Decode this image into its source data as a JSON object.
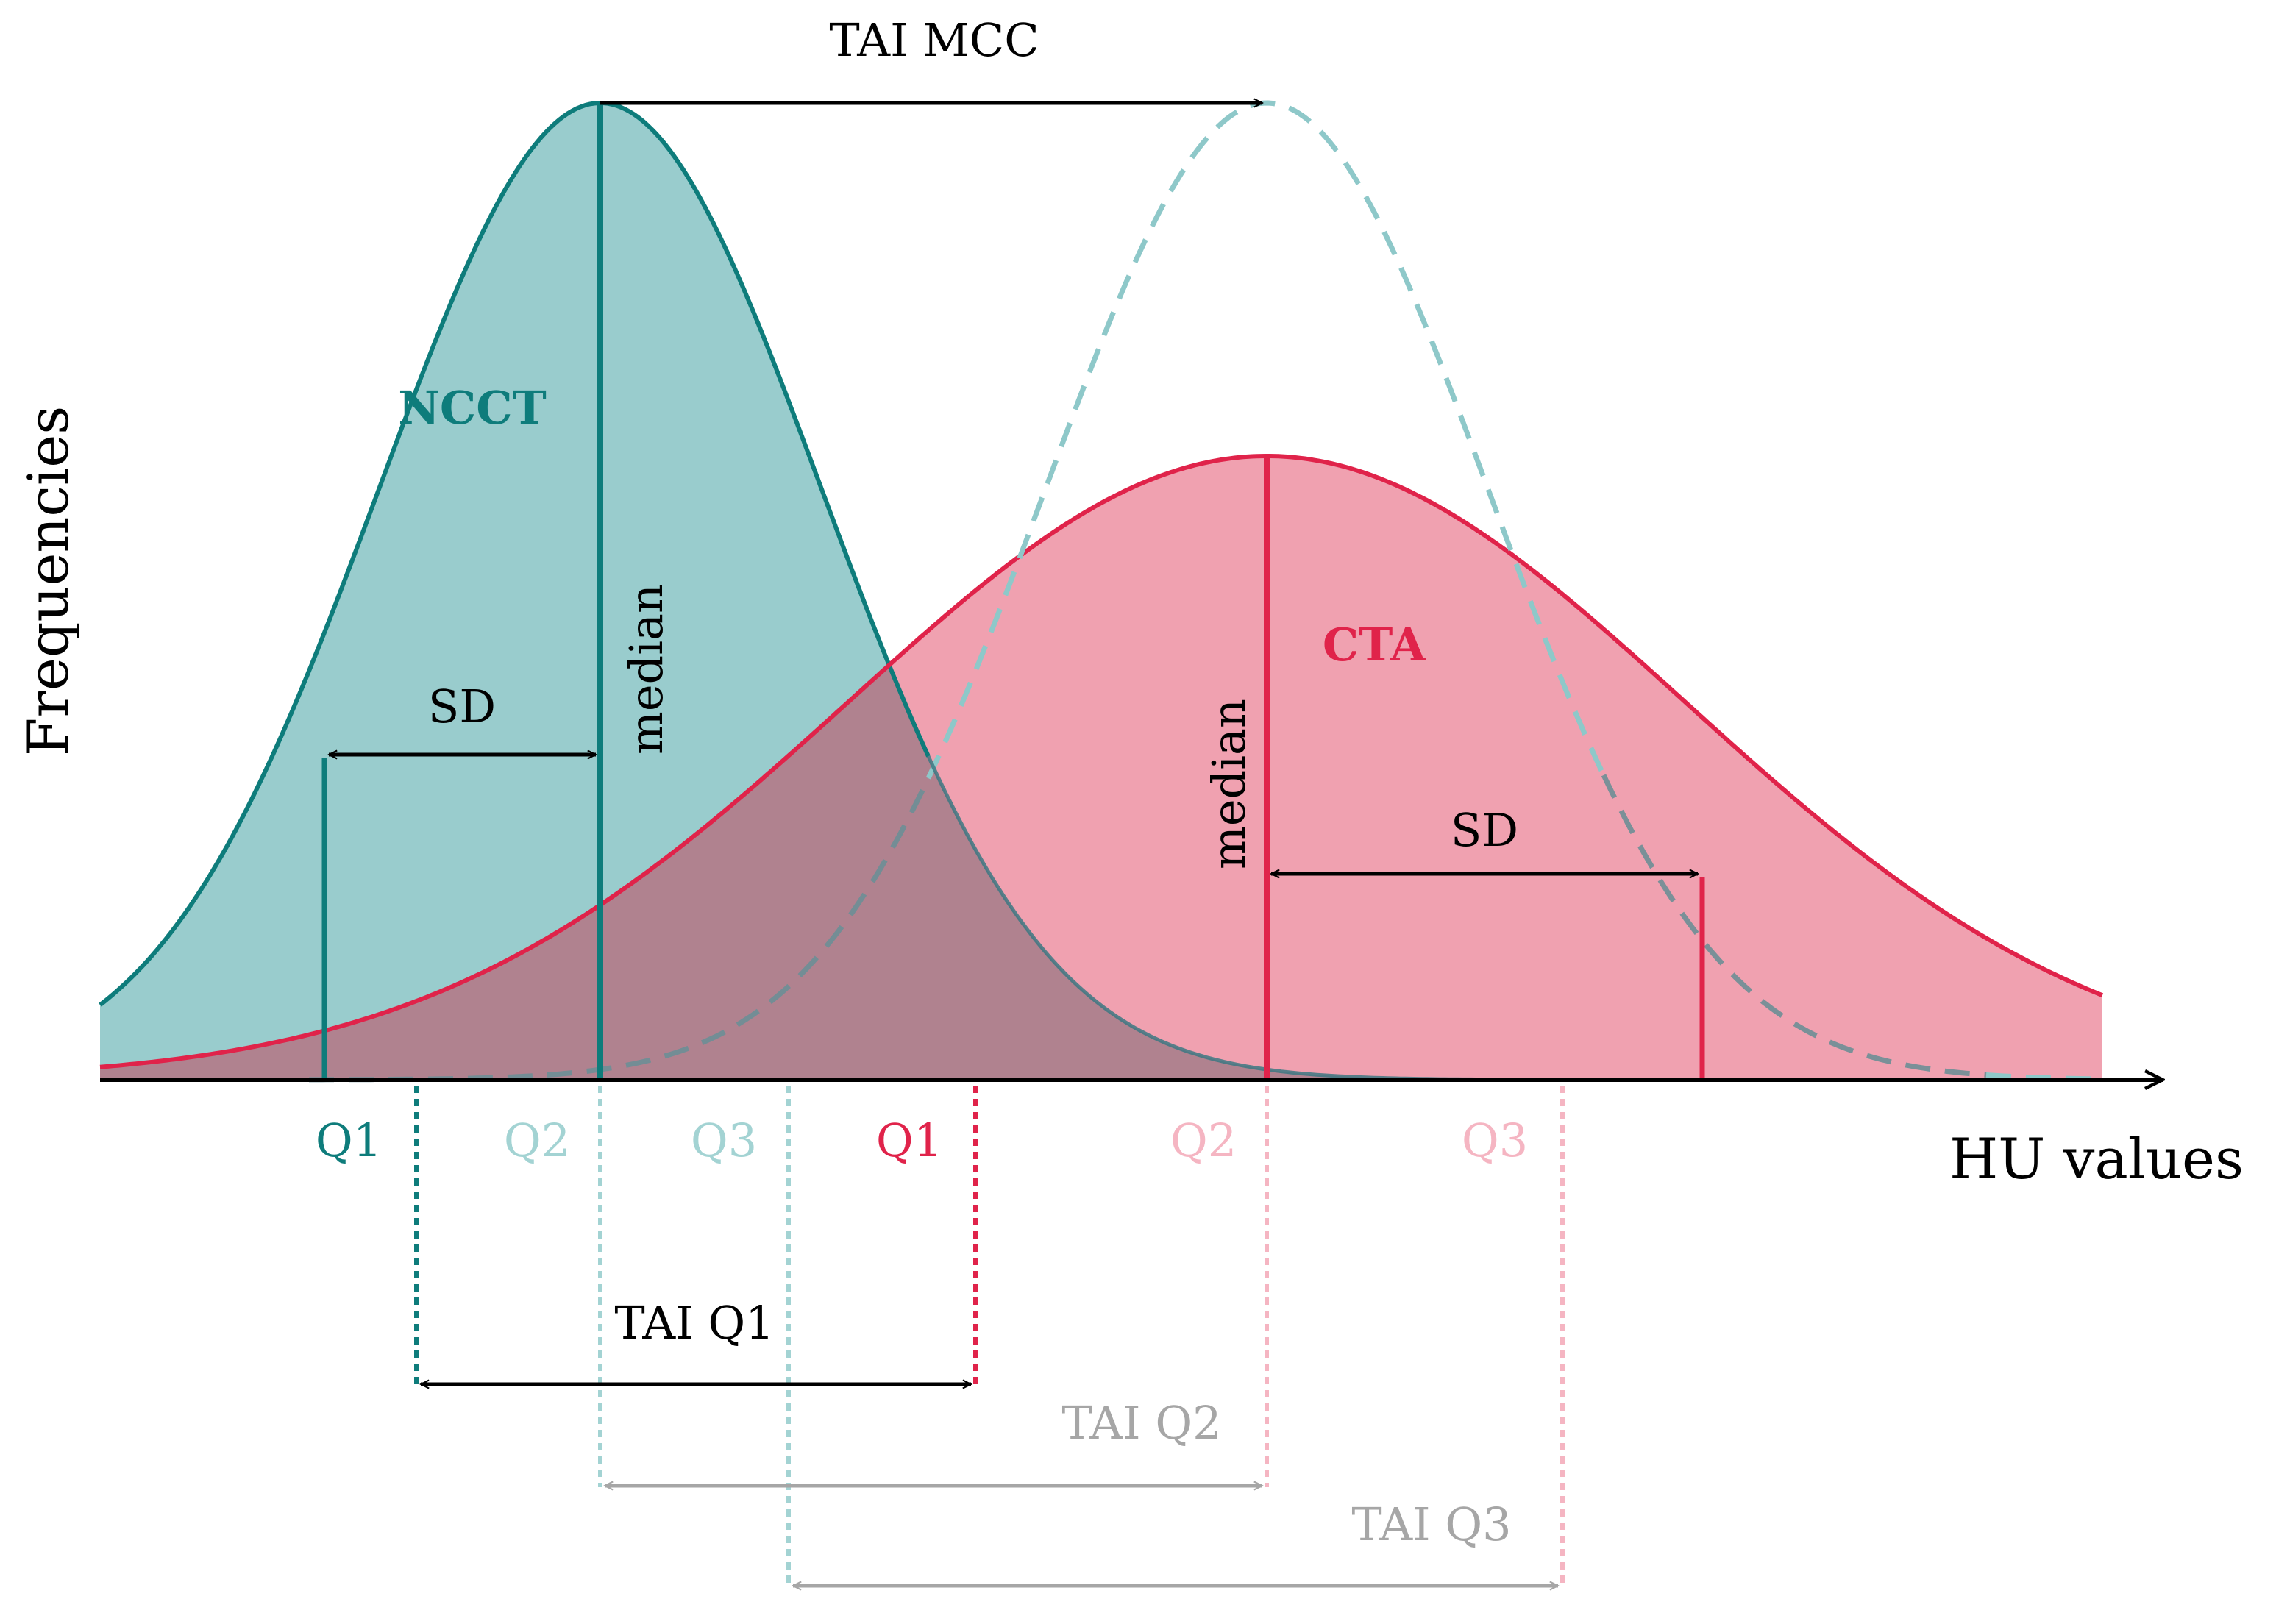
{
  "axes": {
    "y_label": "Frequencies",
    "x_label": "HU values"
  },
  "curves": {
    "ncct": {
      "name": "NCCT",
      "median_label": "median",
      "sd_label": "SD"
    },
    "cta": {
      "name": "CTA",
      "median_label": "median",
      "sd_label": "SD"
    }
  },
  "quartile_labels": {
    "ncct": [
      "Q1",
      "Q2",
      "Q3"
    ],
    "cta": [
      "Q1",
      "Q2",
      "Q3"
    ]
  },
  "tai_labels": {
    "mcc": "TAI MCC",
    "q1": "TAI Q1",
    "q2": "TAI Q2",
    "q3": "TAI Q3"
  },
  "colors": {
    "ncct": "#0e7c7b",
    "ncct_fill": "#99cccd",
    "ncct_light": "#a3d3d3",
    "cta": "#e0234a",
    "cta_fill": "#f0a1b0",
    "cta_light": "#f5b5c2",
    "overlap": "#b0828f",
    "arrow": "#000000",
    "arrow_light": "#a6a6a6"
  }
}
